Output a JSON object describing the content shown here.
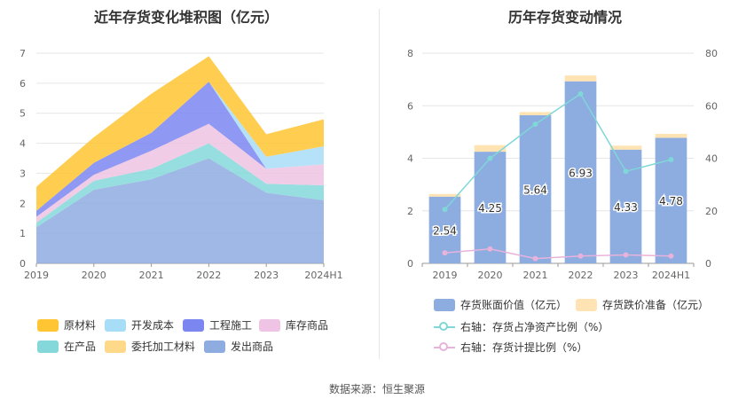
{
  "left_title": "近年存货变化堆积图（亿元）",
  "right_title": "历年存货变动情况",
  "source": "数据来源：恒生聚源",
  "colors": {
    "原材料": "#FFC533",
    "开发成本": "#A8DDF7",
    "工程施工": "#7B86F0",
    "库存商品": "#EEC3E3",
    "在产品": "#84D8D9",
    "委托加工材料": "#FFD98A",
    "发出商品": "#8EACE0",
    "bar_book": "#8DACE0",
    "bar_reserve": "#FFE3B3",
    "line_ratio": "#7FD7D8",
    "line_provision": "#E8B3DB"
  },
  "chart_data": [
    {
      "type": "area",
      "stacked": true,
      "title": "近年存货变化堆积图（亿元）",
      "categories": [
        "2019",
        "2020",
        "2021",
        "2022",
        "2023",
        "2024H1"
      ],
      "ylim": [
        0,
        7
      ],
      "yticks": [
        0,
        1,
        2,
        3,
        4,
        5,
        6,
        7
      ],
      "legend_position": "bottom",
      "series": [
        {
          "name": "发出商品",
          "values": [
            1.2,
            2.45,
            2.8,
            3.5,
            2.35,
            2.1
          ]
        },
        {
          "name": "委托加工材料",
          "values": [
            0,
            0,
            0,
            0,
            0,
            0
          ]
        },
        {
          "name": "在产品",
          "values": [
            0.15,
            0.3,
            0.35,
            0.5,
            0.3,
            0.5
          ]
        },
        {
          "name": "库存商品",
          "values": [
            0.2,
            0.2,
            0.6,
            0.65,
            0.5,
            0.7
          ]
        },
        {
          "name": "工程施工",
          "values": [
            0.2,
            0.4,
            0.6,
            1.4,
            0,
            0
          ]
        },
        {
          "name": "开发成本",
          "values": [
            0,
            0,
            0,
            0,
            0.4,
            0.6
          ]
        },
        {
          "name": "原材料",
          "values": [
            0.8,
            0.85,
            1.3,
            0.85,
            0.75,
            0.9
          ]
        }
      ]
    },
    {
      "type": "bar",
      "stacked": true,
      "title": "历年存货变动情况",
      "categories": [
        "2019",
        "2020",
        "2021",
        "2022",
        "2023",
        "2024H1"
      ],
      "ylim": [
        0,
        8
      ],
      "yticks": [
        0,
        2,
        4,
        6,
        8
      ],
      "y2lim": [
        0,
        80
      ],
      "y2ticks": [
        0,
        20,
        40,
        60,
        80
      ],
      "legend_position": "bottom",
      "series": [
        {
          "name": "存货账面价值（亿元）",
          "axis": "left",
          "type": "bar",
          "values": [
            2.54,
            4.25,
            5.64,
            6.93,
            4.33,
            4.78
          ],
          "labels": [
            "2.54",
            "4.25",
            "5.64",
            "6.93",
            "4.33",
            "4.78"
          ]
        },
        {
          "name": "存货跌价准备（亿元）",
          "axis": "left",
          "type": "bar",
          "values": [
            0.1,
            0.25,
            0.12,
            0.22,
            0.15,
            0.15
          ]
        },
        {
          "name": "右轴：存货占净资产比例（%）",
          "axis": "right",
          "type": "line",
          "values": [
            20.5,
            40,
            53,
            64.5,
            35,
            39.5
          ]
        },
        {
          "name": "右轴：存货计提比例（%）",
          "axis": "right",
          "type": "line",
          "values": [
            4,
            5.5,
            1.8,
            2.8,
            3.2,
            2.8
          ]
        }
      ]
    }
  ]
}
